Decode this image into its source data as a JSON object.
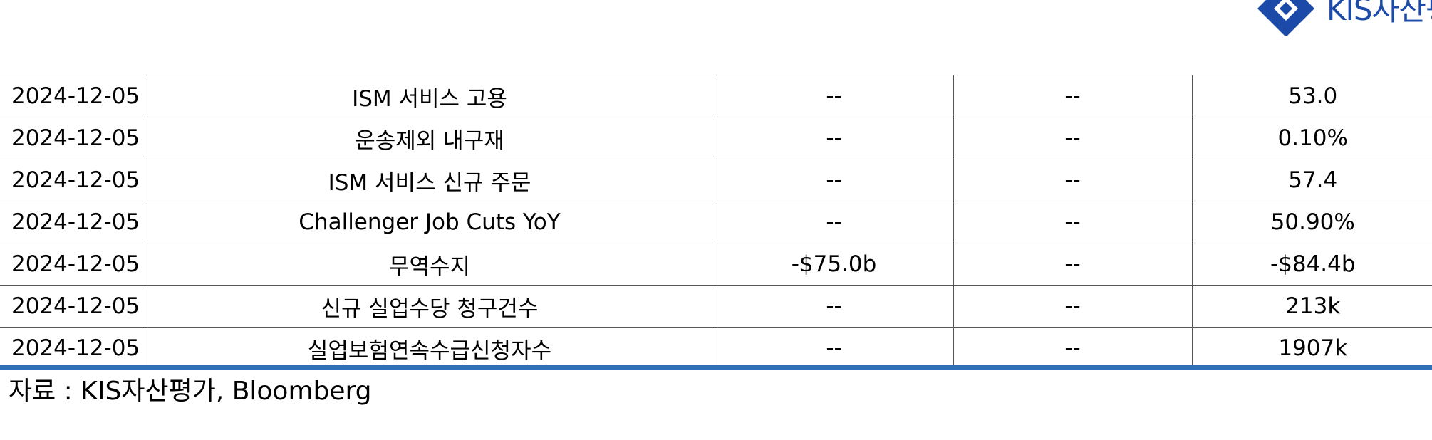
{
  "header": {
    "logo_text": "KIS자산평가",
    "brand_color": "#1c4aa8"
  },
  "table": {
    "rows": [
      {
        "date": "2024-12-05",
        "event": "ISM 서비스 고용",
        "col3": "--",
        "col4": "--",
        "col5": "53.0"
      },
      {
        "date": "2024-12-05",
        "event": "운송제외 내구재",
        "col3": "--",
        "col4": "--",
        "col5": "0.10%"
      },
      {
        "date": "2024-12-05",
        "event": "ISM 서비스 신규 주문",
        "col3": "--",
        "col4": "--",
        "col5": "57.4"
      },
      {
        "date": "2024-12-05",
        "event": "Challenger Job Cuts YoY",
        "col3": "--",
        "col4": "--",
        "col5": "50.90%"
      },
      {
        "date": "2024-12-05",
        "event": "무역수지",
        "col3": "-$75.0b",
        "col4": "--",
        "col5": "-$84.4b"
      },
      {
        "date": "2024-12-05",
        "event": "신규 실업수당 청구건수",
        "col3": "--",
        "col4": "--",
        "col5": "213k"
      },
      {
        "date": "2024-12-05",
        "event": "실업보험연속수급신청자수",
        "col3": "--",
        "col4": "--",
        "col5": "1907k"
      }
    ],
    "rule_color": "#2e6fb7"
  },
  "footer": {
    "source": "자료 : KIS자산평가, Bloomberg"
  }
}
